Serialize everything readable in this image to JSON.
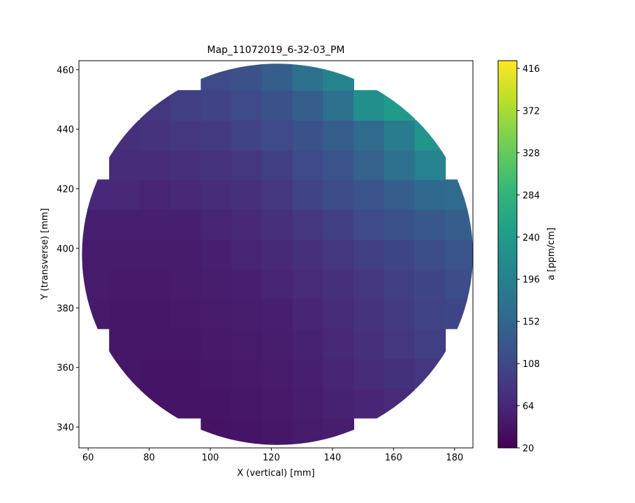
{
  "chart_data": {
    "type": "heatmap",
    "title": "Map_11072019_6-32-03_PM",
    "x_label": "X (vertical) [mm]",
    "y_label": "Y (transverse) [mm]",
    "colorbar_label": "a [ppm/cm]",
    "colormap": "viridis",
    "x": [
      62,
      72,
      82,
      92,
      102,
      112,
      122,
      132,
      142,
      152,
      162,
      172,
      182
    ],
    "y": [
      338,
      348,
      358,
      368,
      378,
      388,
      398,
      408,
      418,
      428,
      438,
      448,
      458
    ],
    "z": [
      [
        null,
        null,
        null,
        null,
        40,
        42,
        45,
        50,
        52,
        null,
        null,
        null,
        null
      ],
      [
        null,
        null,
        42,
        42,
        42,
        45,
        48,
        52,
        58,
        62,
        68,
        null,
        null
      ],
      [
        null,
        45,
        42,
        42,
        45,
        48,
        50,
        55,
        62,
        70,
        78,
        85,
        null
      ],
      [
        null,
        45,
        45,
        45,
        48,
        50,
        52,
        58,
        65,
        75,
        85,
        95,
        null
      ],
      [
        48,
        45,
        45,
        48,
        50,
        52,
        55,
        62,
        70,
        80,
        90,
        100,
        105
      ],
      [
        50,
        48,
        48,
        50,
        52,
        55,
        60,
        68,
        75,
        85,
        95,
        105,
        115
      ],
      [
        50,
        50,
        50,
        50,
        55,
        60,
        65,
        75,
        85,
        95,
        105,
        115,
        125
      ],
      [
        55,
        55,
        55,
        55,
        60,
        65,
        75,
        85,
        95,
        110,
        120,
        130,
        140
      ],
      [
        65,
        65,
        60,
        65,
        70,
        75,
        85,
        100,
        115,
        125,
        140,
        155,
        160
      ],
      [
        null,
        70,
        70,
        75,
        80,
        85,
        95,
        110,
        125,
        145,
        170,
        200,
        null
      ],
      [
        null,
        75,
        80,
        85,
        90,
        100,
        110,
        120,
        140,
        160,
        190,
        230,
        null
      ],
      [
        null,
        null,
        85,
        95,
        100,
        110,
        120,
        140,
        170,
        220,
        240,
        null,
        null
      ],
      [
        null,
        null,
        null,
        null,
        110,
        120,
        140,
        170,
        200,
        null,
        null,
        null,
        null
      ]
    ],
    "xlim": [
      57,
      186
    ],
    "ylim": [
      333,
      463
    ],
    "xticks": [
      60,
      80,
      100,
      120,
      140,
      160,
      180
    ],
    "yticks": [
      340,
      360,
      380,
      400,
      420,
      440,
      460
    ],
    "clim": [
      20,
      424
    ],
    "cticks": [
      20,
      64,
      108,
      152,
      196,
      240,
      284,
      328,
      372,
      416
    ]
  }
}
